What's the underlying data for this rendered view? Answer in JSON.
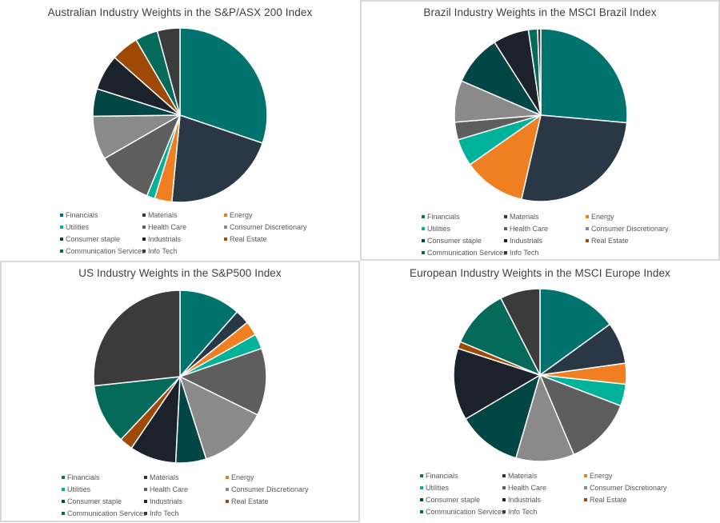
{
  "chart_data": [
    {
      "type": "pie",
      "title": "Australian Industry Weights in the S&P/ASX 200 Index",
      "categories": [
        "Financials",
        "Materials",
        "Energy",
        "Utilities",
        "Health Care",
        "Consumer Discretionary",
        "Consumer staple",
        "Industrials",
        "Real Estate",
        "Communication Services",
        "Info Tech"
      ],
      "values": [
        30.2,
        21.3,
        3.2,
        1.5,
        10.5,
        8.1,
        5.1,
        6.6,
        5.1,
        4.2,
        4.2
      ],
      "legend_position": "bottom"
    },
    {
      "type": "pie",
      "title": "Brazil Industry Weights in the MSCI Brazil Index",
      "categories": [
        "Financials",
        "Materials",
        "Energy",
        "Utilities",
        "Health Care",
        "Consumer Discretionary",
        "Consumer staple",
        "Industrials",
        "Real Estate",
        "Communication Services",
        "Info Tech"
      ],
      "values": [
        26.4,
        27.2,
        11.7,
        5.1,
        3.3,
        7.8,
        9.5,
        6.7,
        0.0,
        1.7,
        0.6
      ],
      "legend_position": "bottom"
    },
    {
      "type": "pie",
      "title": "US Industry Weights in the S&P500 Index",
      "categories": [
        "Financials",
        "Materials",
        "Energy",
        "Utilities",
        "Health Care",
        "Consumer Discretionary",
        "Consumer staple",
        "Industrials",
        "Real Estate",
        "Communication Services",
        "Info Tech"
      ],
      "values": [
        11.5,
        2.7,
        2.7,
        2.8,
        12.6,
        12.8,
        5.7,
        8.7,
        2.5,
        11.3,
        26.7
      ],
      "legend_position": "bottom"
    },
    {
      "type": "pie",
      "title": "European Industry Weights in the MSCI Europe Index",
      "categories": [
        "Financials",
        "Materials",
        "Energy",
        "Utilities",
        "Health Care",
        "Consumer Discretionary",
        "Consumer staple",
        "Industrials",
        "Real Estate",
        "Communication Services",
        "Info Tech"
      ],
      "values": [
        15.0,
        7.8,
        3.9,
        4.1,
        12.8,
        10.9,
        12.0,
        13.5,
        1.3,
        11.2,
        7.5
      ],
      "legend_position": "bottom"
    }
  ],
  "colors": [
    "#00736f",
    "#2a3845",
    "#f07f21",
    "#00b29a",
    "#5e5e5e",
    "#8a8a8a",
    "#034646",
    "#1c222b",
    "#9e4a06",
    "#046b5a",
    "#3b3b3b"
  ]
}
